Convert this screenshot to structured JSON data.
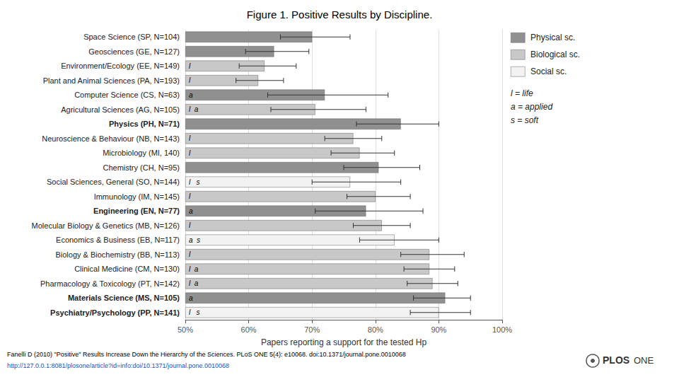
{
  "chart_data": {
    "type": "bar",
    "orientation": "horizontal",
    "title": "Figure 1. Positive Results by Discipline.",
    "xlabel": "Papers reporting a support for the tested Hp",
    "categories": [
      "Space Science (SP, N=104)",
      "Geosciences (GE, N=127)",
      "Environment/Ecology (EE, N=149)",
      "Plant and Animal Sciences (PA, N=193)",
      "Computer Science (CS, N=63)",
      "Agricultural Sciences (AG, N=105)",
      "Physics (PH, N=71)",
      "Neuroscience & Behaviour (NB, N=143)",
      "Microbiology (MI, 140)",
      "Chemistry (CH, N=95)",
      "Social Sciences, General (SO, N=144)",
      "Immunology (IM, N=145)",
      "Engineering (EN, N=77)",
      "Molecular Biology & Genetics (MB, N=126)",
      "Economics & Business (EB, N=117)",
      "Biology & Biochemistry (BB, N=113)",
      "Clinical Medicine (CM, N=130)",
      "Pharmacology & Toxicology (PT, N=142)",
      "Materials Science (MS, N=105)",
      "Psychiatry/Psychology (PP, N=141)"
    ],
    "values": [
      70.0,
      64.0,
      62.5,
      61.5,
      72.0,
      70.5,
      84.0,
      76.5,
      77.5,
      80.5,
      76.0,
      80.0,
      78.5,
      81.0,
      83.0,
      88.5,
      88.5,
      89.0,
      91.0,
      90.0
    ],
    "error_low": [
      5.0,
      4.5,
      4.0,
      3.5,
      9.0,
      7.0,
      7.0,
      4.5,
      4.5,
      5.5,
      6.0,
      4.5,
      8.0,
      4.5,
      5.5,
      4.5,
      4.0,
      4.0,
      5.0,
      4.5
    ],
    "error_high": [
      6.0,
      5.5,
      5.0,
      4.0,
      10.0,
      8.0,
      6.0,
      4.5,
      5.5,
      6.5,
      8.0,
      5.5,
      9.0,
      4.5,
      7.0,
      5.5,
      4.0,
      4.0,
      4.0,
      5.0
    ],
    "colors": [
      "#909090",
      "#909090",
      "#c8c8c8",
      "#c8c8c8",
      "#909090",
      "#c8c8c8",
      "#909090",
      "#c8c8c8",
      "#c8c8c8",
      "#909090",
      "#f2f2f2",
      "#c8c8c8",
      "#909090",
      "#c8c8c8",
      "#f2f2f2",
      "#c8c8c8",
      "#c8c8c8",
      "#c8c8c8",
      "#909090",
      "#f2f2f2"
    ],
    "annotations": [
      null,
      null,
      "l",
      "l",
      "a",
      "l  a",
      null,
      "l",
      "l",
      null,
      "l   s",
      "l",
      "a",
      "l",
      "a  s",
      "l",
      "l  a",
      "l  a",
      "a",
      "l   s"
    ],
    "bold_labels": [
      "Physics (PH, N=71)",
      "Engineering (EN, N=77)",
      "Materials Science (MS, N=105)",
      "Psychiatry/Psychology (PP, N=141)"
    ],
    "xlim": [
      50,
      100
    ],
    "xticks": [
      {
        "value": 50,
        "label": "50%"
      },
      {
        "value": 60,
        "label": "60%"
      },
      {
        "value": 70,
        "label": "70%"
      },
      {
        "value": 80,
        "label": "80%"
      },
      {
        "value": 90,
        "label": "90%"
      },
      {
        "value": 100,
        "label": "100%"
      }
    ],
    "grid": true,
    "legend_entries": [
      {
        "name": "Physical sc.",
        "color": "#909090"
      },
      {
        "name": "Biological sc.",
        "color": "#c8c8c8"
      },
      {
        "name": "Social sc.",
        "color": "#f2f2f2"
      }
    ],
    "annotation_notes": [
      "l = life",
      "a = applied",
      "s = soft"
    ],
    "footer": "Fanelli D (2010) \"Positive\" Results Increase Down the Hierarchy of the Sciences. PLoS ONE 5(4): e10068. doi:10.1371/journal.pone.0010068",
    "footer_url": "http://127.0.0.1:8081/plosone/article?id=info:doi/10.1371/journal.pone.0010068",
    "logo": [
      "PLOS",
      "ONE"
    ]
  }
}
